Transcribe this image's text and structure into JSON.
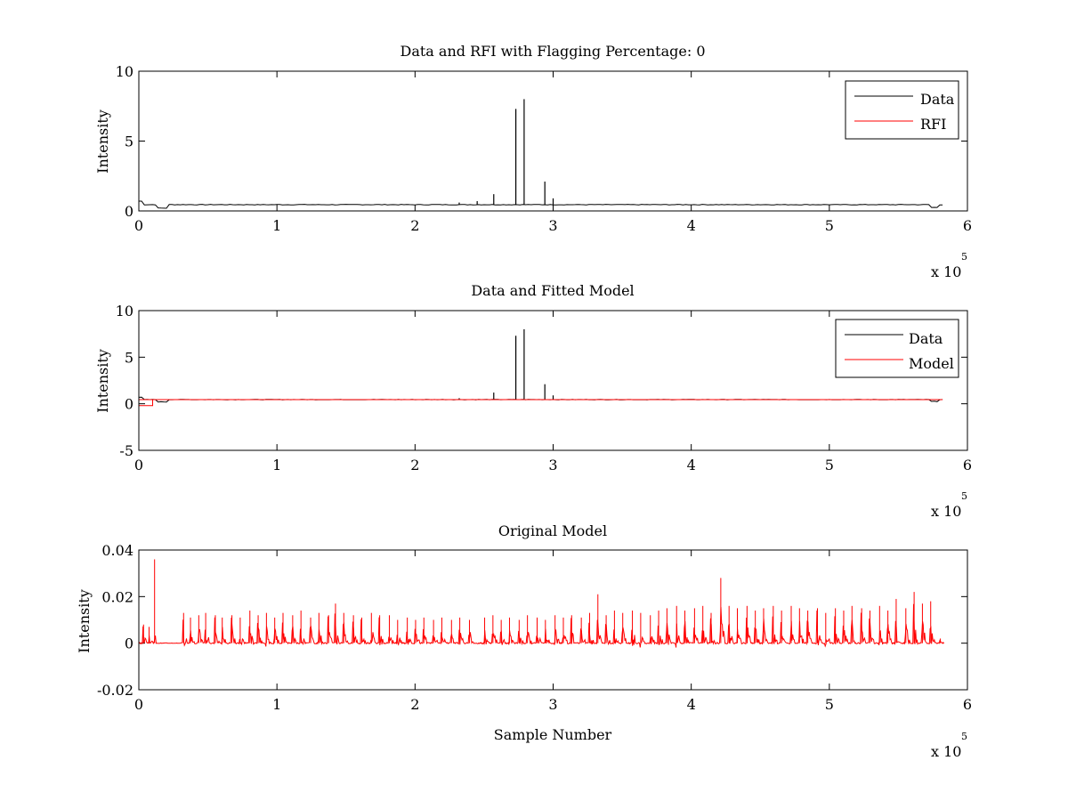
{
  "colors": {
    "data": "#000000",
    "rfi": "#ff0000",
    "model": "#ff0000",
    "background": "#ffffff"
  },
  "chart_data": [
    {
      "type": "line",
      "title": "Data and RFI with Flagging Percentage: 0",
      "xlabel": "",
      "ylabel": "Intensity",
      "xlim": [
        0,
        600000
      ],
      "ylim": [
        0,
        10
      ],
      "xticks": [
        0,
        100000,
        200000,
        300000,
        400000,
        500000,
        600000
      ],
      "xtick_labels": [
        "0",
        "1",
        "2",
        "3",
        "4",
        "5",
        "6"
      ],
      "yticks": [
        0,
        5,
        10
      ],
      "ytick_labels": [
        "0",
        "5",
        "10"
      ],
      "x_multiplier": {
        "base": "x 10",
        "exp": "5"
      },
      "grid": false,
      "legend_position": "top-right",
      "series": [
        {
          "name": "Data",
          "color": "#000000",
          "baseline": 0.45,
          "x_end": 583000,
          "spikes": [
            [
              257000,
              1.2
            ],
            [
              273000,
              7.3
            ],
            [
              279000,
              8.0
            ],
            [
              294000,
              2.1
            ],
            [
              300000,
              0.9
            ],
            [
              245000,
              0.7
            ],
            [
              232000,
              0.6
            ]
          ]
        },
        {
          "name": "RFI",
          "color": "#ff0000",
          "baseline": 0.0,
          "x_end": 583000,
          "spikes": []
        }
      ]
    },
    {
      "type": "line",
      "title": "Data and Fitted Model",
      "xlabel": "",
      "ylabel": "Intensity",
      "xlim": [
        0,
        600000
      ],
      "ylim": [
        -5,
        10
      ],
      "xticks": [
        0,
        100000,
        200000,
        300000,
        400000,
        500000,
        600000
      ],
      "xtick_labels": [
        "0",
        "1",
        "2",
        "3",
        "4",
        "5",
        "6"
      ],
      "yticks": [
        -5,
        0,
        5,
        10
      ],
      "ytick_labels": [
        "-5",
        "0",
        "5",
        "10"
      ],
      "x_multiplier": {
        "base": "x 10",
        "exp": "5"
      },
      "grid": false,
      "legend_position": "top-right",
      "series": [
        {
          "name": "Data",
          "color": "#000000",
          "baseline": 0.45,
          "x_end": 583000,
          "spikes": [
            [
              257000,
              1.2
            ],
            [
              273000,
              7.3
            ],
            [
              279000,
              8.0
            ],
            [
              294000,
              2.1
            ],
            [
              300000,
              0.9
            ],
            [
              232000,
              0.6
            ]
          ]
        },
        {
          "name": "Model",
          "color": "#ff0000",
          "baseline": 0.45,
          "x_end": 583000,
          "spikes": []
        }
      ]
    },
    {
      "type": "line",
      "title": "Original Model",
      "xlabel": "Sample Number",
      "ylabel": "Intensity",
      "xlim": [
        0,
        600000
      ],
      "ylim": [
        -0.02,
        0.04
      ],
      "xticks": [
        0,
        100000,
        200000,
        300000,
        400000,
        500000,
        600000
      ],
      "xtick_labels": [
        "0",
        "1",
        "2",
        "3",
        "4",
        "5",
        "6"
      ],
      "yticks": [
        -0.02,
        0,
        0.02,
        0.04
      ],
      "ytick_labels": [
        "-0.02",
        "0",
        "0.02",
        "0.04"
      ],
      "x_multiplier": {
        "base": "x 10",
        "exp": "5"
      },
      "grid": false,
      "legend_position": "none",
      "series": [
        {
          "color": "#ff0000",
          "baseline": 0.0,
          "x_end": 583000,
          "bursts": [
            [
              3000,
              0.008
            ],
            [
              7000,
              0.007
            ],
            [
              11000,
              0.036
            ],
            [
              32000,
              0.013
            ],
            [
              37000,
              0.011
            ],
            [
              43000,
              0.012
            ],
            [
              48000,
              0.013
            ],
            [
              55000,
              0.012
            ],
            [
              60000,
              0.011
            ],
            [
              67000,
              0.012
            ],
            [
              73000,
              0.011
            ],
            [
              80000,
              0.014
            ],
            [
              86000,
              0.012
            ],
            [
              92000,
              0.013
            ],
            [
              98000,
              0.011
            ],
            [
              104000,
              0.013
            ],
            [
              111000,
              0.012
            ],
            [
              117000,
              0.014
            ],
            [
              124000,
              0.011
            ],
            [
              130000,
              0.013
            ],
            [
              137000,
              0.012
            ],
            [
              142000,
              0.017
            ],
            [
              148000,
              0.013
            ],
            [
              155000,
              0.012
            ],
            [
              161000,
              0.011
            ],
            [
              168000,
              0.013
            ],
            [
              174000,
              0.012
            ],
            [
              181000,
              0.012
            ],
            [
              187000,
              0.01
            ],
            [
              194000,
              0.011
            ],
            [
              200000,
              0.01
            ],
            [
              206000,
              0.011
            ],
            [
              213000,
              0.01
            ],
            [
              219000,
              0.011
            ],
            [
              226000,
              0.01
            ],
            [
              232000,
              0.011
            ],
            [
              239000,
              0.01
            ],
            [
              250000,
              0.011
            ],
            [
              256000,
              0.012
            ],
            [
              262000,
              0.01
            ],
            [
              268000,
              0.011
            ],
            [
              275000,
              0.01
            ],
            [
              281000,
              0.012
            ],
            [
              288000,
              0.011
            ],
            [
              294000,
              0.01
            ],
            [
              301000,
              0.012
            ],
            [
              307000,
              0.011
            ],
            [
              313000,
              0.012
            ],
            [
              320000,
              0.011
            ],
            [
              326000,
              0.013
            ],
            [
              332000,
              0.021
            ],
            [
              338000,
              0.012
            ],
            [
              344000,
              0.014
            ],
            [
              350000,
              0.013
            ],
            [
              357000,
              0.014
            ],
            [
              363000,
              0.013
            ],
            [
              370000,
              0.012
            ],
            [
              376000,
              0.014
            ],
            [
              382000,
              0.015
            ],
            [
              389000,
              0.016
            ],
            [
              395000,
              0.014
            ],
            [
              402000,
              0.015
            ],
            [
              408000,
              0.016
            ],
            [
              414000,
              0.013
            ],
            [
              421000,
              0.028
            ],
            [
              427000,
              0.016
            ],
            [
              433000,
              0.015
            ],
            [
              440000,
              0.016
            ],
            [
              446000,
              0.014
            ],
            [
              452000,
              0.015
            ],
            [
              459000,
              0.016
            ],
            [
              465000,
              0.014
            ],
            [
              472000,
              0.016
            ],
            [
              478000,
              0.015
            ],
            [
              484000,
              0.014
            ],
            [
              491000,
              0.015
            ],
            [
              497000,
              0.013
            ],
            [
              504000,
              0.015
            ],
            [
              510000,
              0.014
            ],
            [
              516000,
              0.016
            ],
            [
              523000,
              0.015
            ],
            [
              529000,
              0.014
            ],
            [
              536000,
              0.016
            ],
            [
              542000,
              0.014
            ],
            [
              548000,
              0.019
            ],
            [
              555000,
              0.015
            ],
            [
              561000,
              0.022
            ],
            [
              567000,
              0.017
            ],
            [
              573000,
              0.018
            ],
            [
              580000,
              0.002
            ]
          ]
        }
      ]
    }
  ]
}
